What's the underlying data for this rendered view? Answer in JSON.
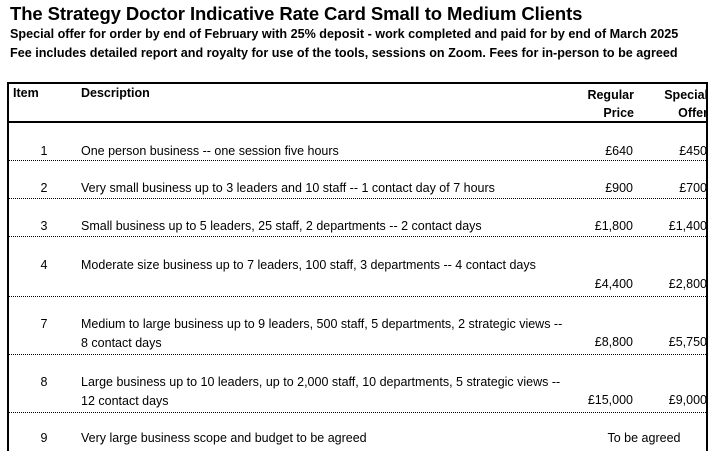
{
  "header": {
    "title": "The Strategy Doctor Indicative Rate Card Small to Medium Clients",
    "line1": "Special offer for order by end of February with 25% deposit -  work completed and paid for by end of March 2025",
    "line2": "Fee includes detailed report and royalty for use of the tools, sessions on Zoom.  Fees for in-person to be agreed"
  },
  "table": {
    "columns": {
      "item": "Item",
      "description": "Description",
      "regular_line1": "Regular",
      "regular_line2": "Price",
      "special_line1": "Special",
      "special_line2": "Offer"
    },
    "rows": [
      {
        "item": "1",
        "description": "One person business -- one session five hours",
        "regular": "£640",
        "special": "£450"
      },
      {
        "item": "2",
        "description": "Very small business up to 3 leaders and 10 staff -- 1 contact day of 7 hours",
        "regular": "£900",
        "special": "£700"
      },
      {
        "item": "3",
        "description": "Small business up to 5 leaders, 25 staff, 2 departments -- 2 contact days",
        "regular": "£1,800",
        "special": "£1,400"
      },
      {
        "item": "4",
        "description": "Moderate size business up to 7 leaders, 100 staff, 3 departments -- 4 contact days",
        "regular": "£4,400",
        "special": "£2,800"
      },
      {
        "item": "7",
        "description": "Medium to large business up to 9 leaders, 500 staff, 5 departments, 2 strategic views -- 8 contact days",
        "regular": "£8,800",
        "special": "£5,750"
      },
      {
        "item": "8",
        "description": "Large business up to 10 leaders, up to 2,000 staff, 10 departments, 5 strategic views -- 12 contact days",
        "regular": "£15,000",
        "special": "£9,000"
      },
      {
        "item": "9",
        "description": "Very large business scope and budget to be agreed",
        "note": "To be agreed"
      }
    ]
  }
}
